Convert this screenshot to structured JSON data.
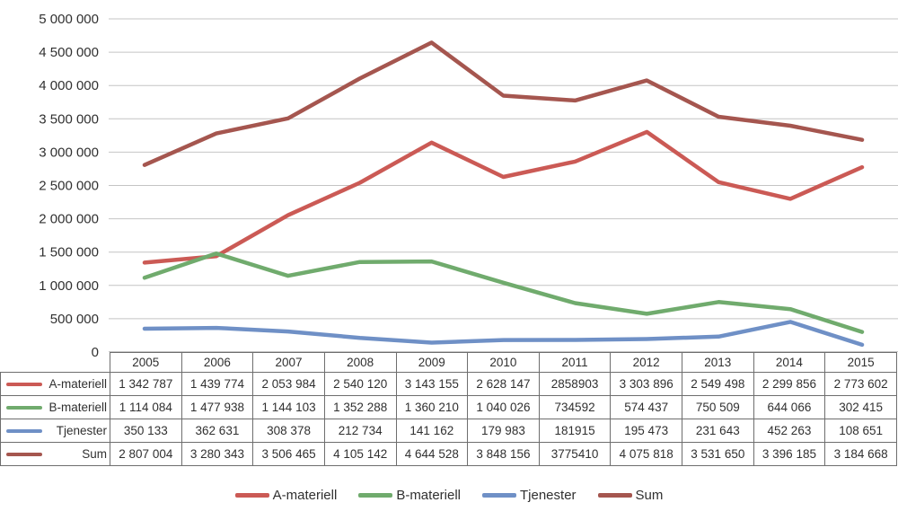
{
  "chart_data": {
    "type": "line",
    "title": "",
    "xlabel": "",
    "ylabel": "",
    "grid": true,
    "legend_position": "bottom",
    "ylim": [
      0,
      5000000
    ],
    "categories": [
      "2005",
      "2006",
      "2007",
      "2008",
      "2009",
      "2010",
      "2011",
      "2012",
      "2013",
      "2014",
      "2015"
    ],
    "series": [
      {
        "name": "A-materiell",
        "color": "#CB5A55",
        "values": [
          1342787,
          1439774,
          2053984,
          2540120,
          3143155,
          2628147,
          2858903,
          3303896,
          2549498,
          2299856,
          2773602
        ]
      },
      {
        "name": "B-materiell",
        "color": "#70AB6D",
        "values": [
          1114084,
          1477938,
          1144103,
          1352288,
          1360210,
          1040026,
          734592,
          574437,
          750509,
          644066,
          302415
        ]
      },
      {
        "name": "Tjenester",
        "color": "#6F90C6",
        "values": [
          350133,
          362631,
          308378,
          212734,
          141162,
          179983,
          181915,
          195473,
          231643,
          452263,
          108651
        ]
      },
      {
        "name": "Sum",
        "color": "#A5564F",
        "values": [
          2807004,
          3280343,
          3506465,
          4105142,
          4644528,
          3848156,
          3775410,
          4075818,
          3531650,
          3396185,
          3184668
        ]
      }
    ],
    "y_ticks": [
      {
        "label": "5 000 000",
        "value": 5000000
      },
      {
        "label": "4 500 000",
        "value": 4500000
      },
      {
        "label": "4 000 000",
        "value": 4000000
      },
      {
        "label": "3 500 000",
        "value": 3500000
      },
      {
        "label": "3 000 000",
        "value": 3000000
      },
      {
        "label": "2 500 000",
        "value": 2500000
      },
      {
        "label": "2 000 000",
        "value": 2000000
      },
      {
        "label": "1 500 000",
        "value": 1500000
      },
      {
        "label": "1 000 000",
        "value": 1000000
      },
      {
        "label": "500 000",
        "value": 500000
      },
      {
        "label": "0",
        "value": 0
      }
    ],
    "data_table": {
      "year_headers": [
        "2005",
        "2006",
        "2007",
        "2008",
        "2009",
        "2010",
        "2011",
        "2012",
        "2013",
        "2014",
        "2015"
      ],
      "rows": [
        {
          "label": "A-materiell",
          "color": "#CB5A55",
          "cells": [
            "1 342 787",
            "1 439 774",
            "2 053 984",
            "2 540 120",
            "3 143 155",
            "2 628 147",
            "2858903",
            "3 303 896",
            "2 549 498",
            "2 299 856",
            "2 773 602"
          ]
        },
        {
          "label": "B-materiell",
          "color": "#70AB6D",
          "cells": [
            "1 114 084",
            "1 477 938",
            "1 144 103",
            "1 352 288",
            "1 360 210",
            "1 040 026",
            "734592",
            "574 437",
            "750 509",
            "644 066",
            "302 415"
          ]
        },
        {
          "label": "Tjenester",
          "color": "#6F90C6",
          "cells": [
            "350 133",
            "362 631",
            "308 378",
            "212 734",
            "141 162",
            "179 983",
            "181915",
            "195 473",
            "231 643",
            "452 263",
            "108 651"
          ]
        },
        {
          "label": "Sum",
          "color": "#A5564F",
          "cells": [
            "2 807 004",
            "3 280 343",
            "3 506 465",
            "4 105 142",
            "4 644 528",
            "3 848 156",
            "3775410",
            "4 075 818",
            "3 531 650",
            "3 396 185",
            "3 184 668"
          ]
        }
      ]
    },
    "legend_items": [
      {
        "label": "A-materiell",
        "color": "#CB5A55"
      },
      {
        "label": "B-materiell",
        "color": "#70AB6D"
      },
      {
        "label": "Tjenester",
        "color": "#6F90C6"
      },
      {
        "label": "Sum",
        "color": "#A5564F"
      }
    ],
    "style": {
      "gridline_color": "#C4C4C4",
      "axis_text_color": "#303030",
      "table_border_color": "#6E6E6E",
      "line_width": 4.5
    }
  }
}
